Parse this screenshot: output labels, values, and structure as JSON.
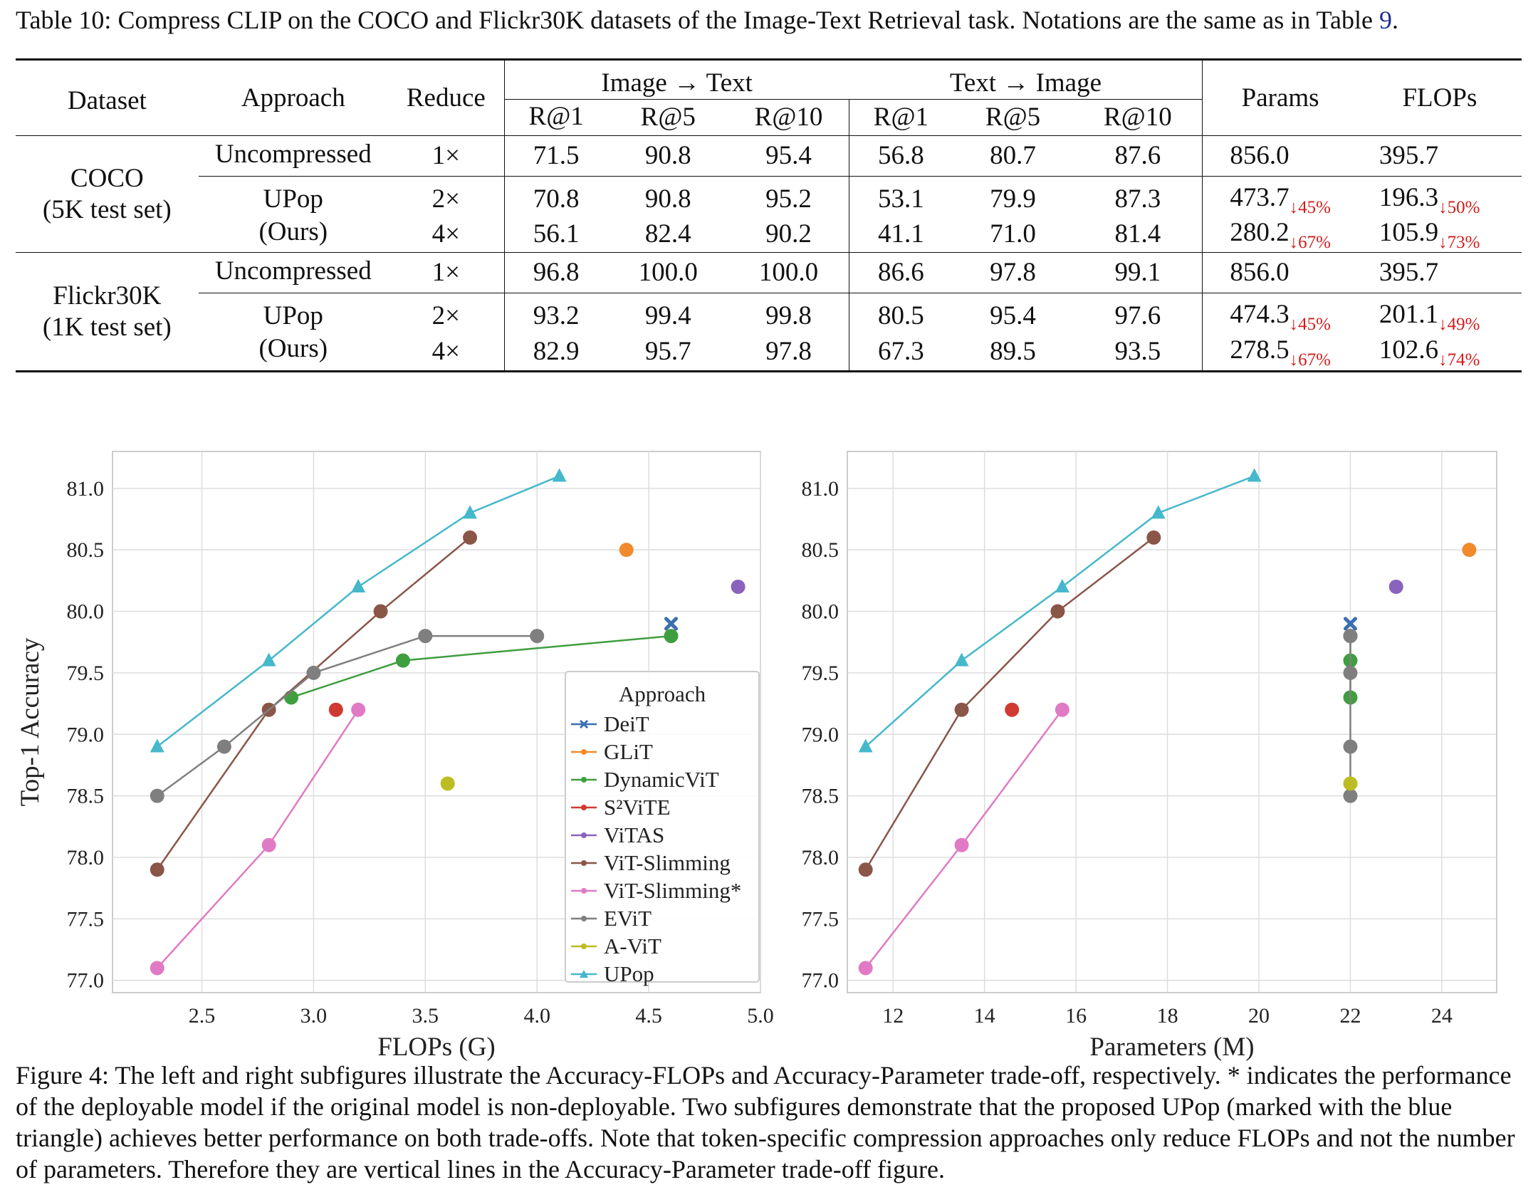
{
  "table": {
    "caption_prefix": "Table 10: Compress CLIP on the COCO and Flickr30K datasets of the Image-Text Retrieval task. Notations are the same as in Table ",
    "caption_ref": "9",
    "caption_suffix": ".",
    "headers": {
      "dataset": "Dataset",
      "approach": "Approach",
      "reduce": "Reduce",
      "i2t": "Image → Text",
      "t2i": "Text → Image",
      "params": "Params",
      "flops": "FLOPs",
      "r1": "R@1",
      "r5": "R@5",
      "r10": "R@10"
    },
    "groups": [
      {
        "dataset": "COCO",
        "subset": "(5K test set)",
        "rows": [
          {
            "approach": "Uncompressed",
            "reduce": "1×",
            "i2t": [
              "71.5",
              "90.8",
              "95.4"
            ],
            "t2i": [
              "56.8",
              "80.7",
              "87.6"
            ],
            "params": "856.0",
            "params_delta": "",
            "flops": "395.7",
            "flops_delta": ""
          },
          {
            "approach": "UPop",
            "reduce": "2×",
            "i2t": [
              "70.8",
              "90.8",
              "95.2"
            ],
            "t2i": [
              "53.1",
              "79.9",
              "87.3"
            ],
            "params": "473.7",
            "params_delta": "↓45%",
            "flops": "196.3",
            "flops_delta": "↓50%"
          },
          {
            "approach": "(Ours)",
            "reduce": "4×",
            "i2t": [
              "56.1",
              "82.4",
              "90.2"
            ],
            "t2i": [
              "41.1",
              "71.0",
              "81.4"
            ],
            "params": "280.2",
            "params_delta": "↓67%",
            "flops": "105.9",
            "flops_delta": "↓73%"
          }
        ]
      },
      {
        "dataset": "Flickr30K",
        "subset": "(1K test set)",
        "rows": [
          {
            "approach": "Uncompressed",
            "reduce": "1×",
            "i2t": [
              "96.8",
              "100.0",
              "100.0"
            ],
            "t2i": [
              "86.6",
              "97.8",
              "99.1"
            ],
            "params": "856.0",
            "params_delta": "",
            "flops": "395.7",
            "flops_delta": ""
          },
          {
            "approach": "UPop",
            "reduce": "2×",
            "i2t": [
              "93.2",
              "99.4",
              "99.8"
            ],
            "t2i": [
              "80.5",
              "95.4",
              "97.6"
            ],
            "params": "474.3",
            "params_delta": "↓45%",
            "flops": "201.1",
            "flops_delta": "↓49%"
          },
          {
            "approach": "(Ours)",
            "reduce": "4×",
            "i2t": [
              "82.9",
              "95.7",
              "97.8"
            ],
            "t2i": [
              "67.3",
              "89.5",
              "93.5"
            ],
            "params": "278.5",
            "params_delta": "↓67%",
            "flops": "102.6",
            "flops_delta": "↓74%"
          }
        ]
      }
    ]
  },
  "figure_caption": "Figure 4: The left and right subfigures illustrate the Accuracy-FLOPs and Accuracy-Parameter trade-off, respectively. * indicates the performance of the deployable model if the original model is non-deployable. Two subfigures demonstrate that the proposed UPop (marked with the blue triangle) achieves better performance on both trade-offs. Note that token-specific compression approaches only reduce FLOPs and not the number of parameters. Therefore they are vertical lines in the Accuracy-Parameter trade-off figure.",
  "chart_data": [
    {
      "type": "line",
      "xlabel": "FLOPs (G)",
      "ylabel": "Top-1 Accuracy",
      "xlim": [
        2.1,
        5.0
      ],
      "ylim": [
        76.9,
        81.3
      ],
      "xticks": [
        2.5,
        3.0,
        3.5,
        4.0,
        4.5,
        5.0
      ],
      "yticks": [
        77.0,
        77.5,
        78.0,
        78.5,
        79.0,
        79.5,
        80.0,
        80.5,
        81.0
      ],
      "grid": true,
      "legend_title": "Approach",
      "legend_position": "center-right",
      "series": [
        {
          "name": "DeiT",
          "color": "#3a6fb0",
          "marker": "x",
          "x": [
            4.6
          ],
          "y": [
            79.9
          ]
        },
        {
          "name": "GLiT",
          "color": "#f08a2c",
          "marker": "o",
          "x": [
            4.4
          ],
          "y": [
            80.5
          ]
        },
        {
          "name": "DynamicViT",
          "color": "#3f9e3f",
          "marker": "o",
          "x": [
            2.9,
            3.4,
            4.6
          ],
          "y": [
            79.3,
            79.6,
            79.8
          ]
        },
        {
          "name": "S²ViTE",
          "color": "#d03a32",
          "marker": "o",
          "x": [
            3.1
          ],
          "y": [
            79.2
          ]
        },
        {
          "name": "ViTAS",
          "color": "#8a63bd",
          "marker": "o",
          "x": [
            4.9
          ],
          "y": [
            80.2
          ]
        },
        {
          "name": "ViT-Slimming",
          "color": "#8a5648",
          "marker": "o",
          "x": [
            2.3,
            2.8,
            3.3,
            3.7
          ],
          "y": [
            77.9,
            79.2,
            80.0,
            80.6
          ]
        },
        {
          "name": "ViT-Slimming*",
          "color": "#e07ac4",
          "marker": "o",
          "x": [
            2.3,
            2.8,
            3.2
          ],
          "y": [
            77.1,
            78.1,
            79.2
          ]
        },
        {
          "name": "EViT",
          "color": "#7f7f7f",
          "marker": "o",
          "x": [
            2.3,
            2.6,
            3.0,
            3.5,
            4.0
          ],
          "y": [
            78.5,
            78.9,
            79.5,
            79.8,
            79.8
          ]
        },
        {
          "name": "A-ViT",
          "color": "#bcbd22",
          "marker": "o",
          "x": [
            3.6
          ],
          "y": [
            78.6
          ]
        },
        {
          "name": "UPop",
          "color": "#45b8cc",
          "marker": "^",
          "x": [
            2.3,
            2.8,
            3.2,
            3.7,
            4.1
          ],
          "y": [
            78.9,
            79.6,
            80.2,
            80.8,
            81.1
          ]
        }
      ]
    },
    {
      "type": "line",
      "xlabel": "Parameters (M)",
      "ylabel": "",
      "xlim": [
        11.0,
        25.2
      ],
      "ylim": [
        76.9,
        81.3
      ],
      "xticks": [
        12,
        14,
        16,
        18,
        20,
        22,
        24
      ],
      "yticks": [
        77.0,
        77.5,
        78.0,
        78.5,
        79.0,
        79.5,
        80.0,
        80.5,
        81.0
      ],
      "grid": true,
      "series": [
        {
          "name": "DeiT",
          "color": "#3a6fb0",
          "marker": "x",
          "x": [
            22
          ],
          "y": [
            79.9
          ]
        },
        {
          "name": "GLiT",
          "color": "#f08a2c",
          "marker": "o",
          "x": [
            24.6
          ],
          "y": [
            80.5
          ]
        },
        {
          "name": "DynamicViT",
          "color": "#3f9e3f",
          "marker": "o",
          "x": [
            22,
            22,
            22
          ],
          "y": [
            79.3,
            79.6,
            79.8
          ]
        },
        {
          "name": "S²ViTE",
          "color": "#d03a32",
          "marker": "o",
          "x": [
            14.6
          ],
          "y": [
            79.2
          ]
        },
        {
          "name": "ViTAS",
          "color": "#8a63bd",
          "marker": "o",
          "x": [
            23.0
          ],
          "y": [
            80.2
          ]
        },
        {
          "name": "ViT-Slimming",
          "color": "#8a5648",
          "marker": "o",
          "x": [
            11.4,
            13.5,
            15.6,
            17.7
          ],
          "y": [
            77.9,
            79.2,
            80.0,
            80.6
          ]
        },
        {
          "name": "ViT-Slimming*",
          "color": "#e07ac4",
          "marker": "o",
          "x": [
            11.4,
            13.5,
            15.7
          ],
          "y": [
            77.1,
            78.1,
            79.2
          ]
        },
        {
          "name": "EViT",
          "color": "#7f7f7f",
          "marker": "o",
          "x": [
            22,
            22,
            22,
            22,
            22
          ],
          "y": [
            78.5,
            78.9,
            79.5,
            79.8,
            79.8
          ]
        },
        {
          "name": "A-ViT",
          "color": "#bcbd22",
          "marker": "o",
          "x": [
            22
          ],
          "y": [
            78.6
          ]
        },
        {
          "name": "UPop",
          "color": "#45b8cc",
          "marker": "^",
          "x": [
            11.4,
            13.5,
            15.7,
            17.8,
            19.9
          ],
          "y": [
            78.9,
            79.6,
            80.2,
            80.8,
            81.1
          ]
        }
      ]
    }
  ]
}
